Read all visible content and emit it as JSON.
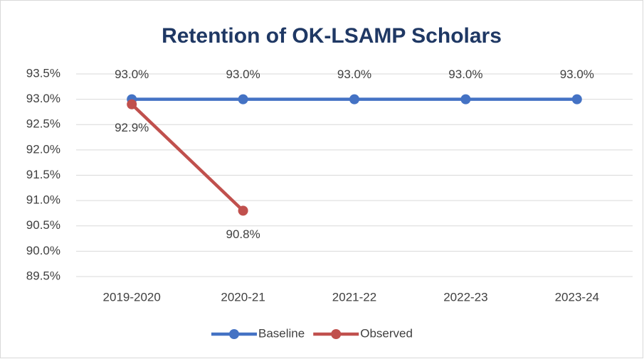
{
  "chart_data": {
    "type": "line",
    "title": "Retention of OK-LSAMP Scholars",
    "categories": [
      "2019-2020",
      "2020-21",
      "2021-22",
      "2022-23",
      "2023-24"
    ],
    "series": [
      {
        "name": "Baseline",
        "color": "#4472c4",
        "values": [
          93.0,
          93.0,
          93.0,
          93.0,
          93.0
        ],
        "value_labels": [
          "93.0%",
          "93.0%",
          "93.0%",
          "93.0%",
          "93.0%"
        ]
      },
      {
        "name": "Observed",
        "color": "#c0504d",
        "values": [
          92.9,
          90.8,
          null,
          null,
          null
        ],
        "value_labels": [
          "92.9%",
          "90.8%",
          null,
          null,
          null
        ]
      }
    ],
    "ylim": [
      89.5,
      93.5
    ],
    "yticks": [
      {
        "value": 89.5,
        "label": "89.5%"
      },
      {
        "value": 90.0,
        "label": "90.0%"
      },
      {
        "value": 90.5,
        "label": "90.5%"
      },
      {
        "value": 91.0,
        "label": "91.0%"
      },
      {
        "value": 91.5,
        "label": "91.5%"
      },
      {
        "value": 92.0,
        "label": "92.0%"
      },
      {
        "value": 92.5,
        "label": "92.5%"
      },
      {
        "value": 93.0,
        "label": "93.0%"
      },
      {
        "value": 93.5,
        "label": "93.5%"
      }
    ],
    "grid": true,
    "legend": "bottom"
  }
}
